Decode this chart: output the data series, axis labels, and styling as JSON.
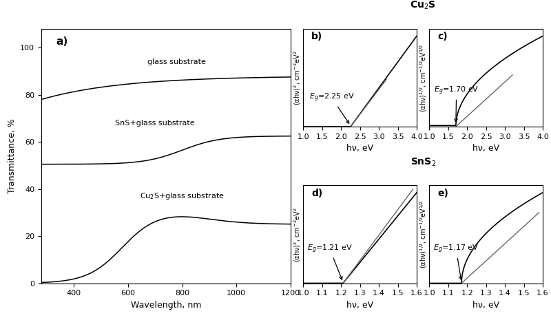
{
  "title_cu2s": "Cu$_2$S",
  "title_sns2": "SnS$_2$",
  "panel_a_xlabel": "Wavelength, nm",
  "panel_a_ylabel": "Transmittance, %",
  "panel_b_xlabel": "hν, eV",
  "panel_b_ylabel": "(αhν)$^2$, cm$^{-2}$eV$^2$",
  "panel_c_xlabel": "hν, eV",
  "panel_c_ylabel": "(αhν)$^{1/2}$, cm$^{-1/2}$eV$^{1/2}$",
  "panel_d_xlabel": "hν, eV",
  "panel_d_ylabel": "(αhν)$^2$, cm$^{-2}$eV$^2$",
  "panel_e_xlabel": "hν, eV",
  "panel_e_ylabel": "(αhν)$^{1/2}$, cm$^{-1/2}$eV$^{1/2}$",
  "Eg_b": 2.25,
  "Eg_c": 1.7,
  "Eg_d": 1.21,
  "Eg_e": 1.17,
  "label_b": "$E_g$=2.25 eV",
  "label_c": "$E_g$=1.70 eV",
  "label_d": "$E_g$=1.21 eV",
  "label_e": "$E_g$=1.17 eV",
  "glass_label": "glass substrate",
  "sns_glass_label": "SnS+glass substrate",
  "cu2s_glass_label": "Cu$_2$S+glass substrate"
}
